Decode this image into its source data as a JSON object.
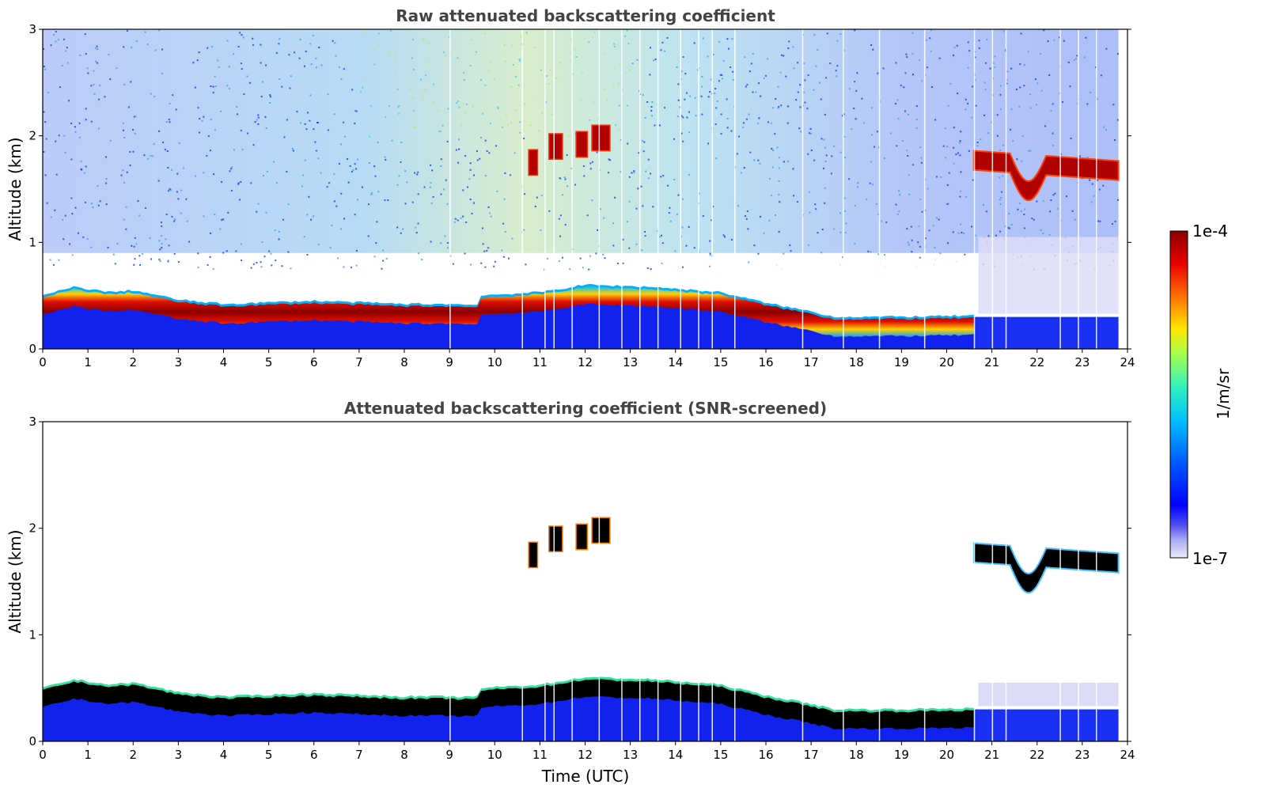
{
  "chart_data": [
    {
      "type": "heatmap",
      "title": "Raw attenuated backscattering coefficient",
      "xlabel": "",
      "ylabel": "Altitude (km)",
      "xlim": [
        0,
        24
      ],
      "ylim": [
        0,
        3
      ],
      "xticks": [
        "0",
        "1",
        "2",
        "3",
        "4",
        "5",
        "6",
        "7",
        "8",
        "9",
        "10",
        "11",
        "12",
        "13",
        "14",
        "15",
        "16",
        "17",
        "18",
        "19",
        "20",
        "21",
        "22",
        "23",
        "24"
      ],
      "yticks": [
        "0",
        "1",
        "2",
        "3"
      ],
      "boundary_layer_top_km": [
        {
          "t": 0,
          "z": 0.42
        },
        {
          "t": 0.7,
          "z": 0.5
        },
        {
          "t": 1.5,
          "z": 0.45
        },
        {
          "t": 2,
          "z": 0.47
        },
        {
          "t": 3,
          "z": 0.38
        },
        {
          "t": 4,
          "z": 0.34
        },
        {
          "t": 6,
          "z": 0.37
        },
        {
          "t": 8,
          "z": 0.34
        },
        {
          "t": 9,
          "z": 0.34
        },
        {
          "t": 9.6,
          "z": 0.33
        },
        {
          "t": 9.7,
          "z": 0.42
        },
        {
          "t": 11,
          "z": 0.45
        },
        {
          "t": 12,
          "z": 0.52
        },
        {
          "t": 13.5,
          "z": 0.5
        },
        {
          "t": 15,
          "z": 0.45
        },
        {
          "t": 16,
          "z": 0.35
        },
        {
          "t": 17,
          "z": 0.27
        },
        {
          "t": 17.5,
          "z": 0.22
        },
        {
          "t": 19,
          "z": 0.22
        },
        {
          "t": 20.5,
          "z": 0.23
        }
      ],
      "cloud_segments": [
        {
          "t0": 10.75,
          "t1": 10.95,
          "z": 1.75
        },
        {
          "t0": 11.2,
          "t1": 11.5,
          "z": 1.9
        },
        {
          "t0": 11.8,
          "t1": 12.05,
          "z": 1.92
        },
        {
          "t0": 12.15,
          "t1": 12.55,
          "z": 1.98
        },
        {
          "t0": 20.6,
          "t1": 23.8,
          "z": 1.7
        }
      ]
    },
    {
      "type": "heatmap",
      "title": "Attenuated backscattering coefficient (SNR-screened)",
      "xlabel": "Time (UTC)",
      "ylabel": "Altitude (km)",
      "xlim": [
        0,
        24
      ],
      "ylim": [
        0,
        3
      ],
      "xticks": [
        "0",
        "1",
        "2",
        "3",
        "4",
        "5",
        "6",
        "7",
        "8",
        "9",
        "10",
        "11",
        "12",
        "13",
        "14",
        "15",
        "16",
        "17",
        "18",
        "19",
        "20",
        "21",
        "22",
        "23",
        "24"
      ],
      "yticks": [
        "0",
        "1",
        "2",
        "3"
      ]
    }
  ],
  "colorbar": {
    "label": "1/m/sr",
    "max_label": "1e-4",
    "min_label": "1e-7",
    "colors": [
      "#eaeaf9",
      "#c8c8f6",
      "#9a9af2",
      "#6464ee",
      "#1b1bf0",
      "#0000ff",
      "#0040ff",
      "#0080ff",
      "#00c0ff",
      "#10e8e0",
      "#40f0a0",
      "#90ff60",
      "#d0ff20",
      "#ffe800",
      "#ffa800",
      "#ff6000",
      "#ff1800",
      "#d40000",
      "#8b0000"
    ]
  }
}
